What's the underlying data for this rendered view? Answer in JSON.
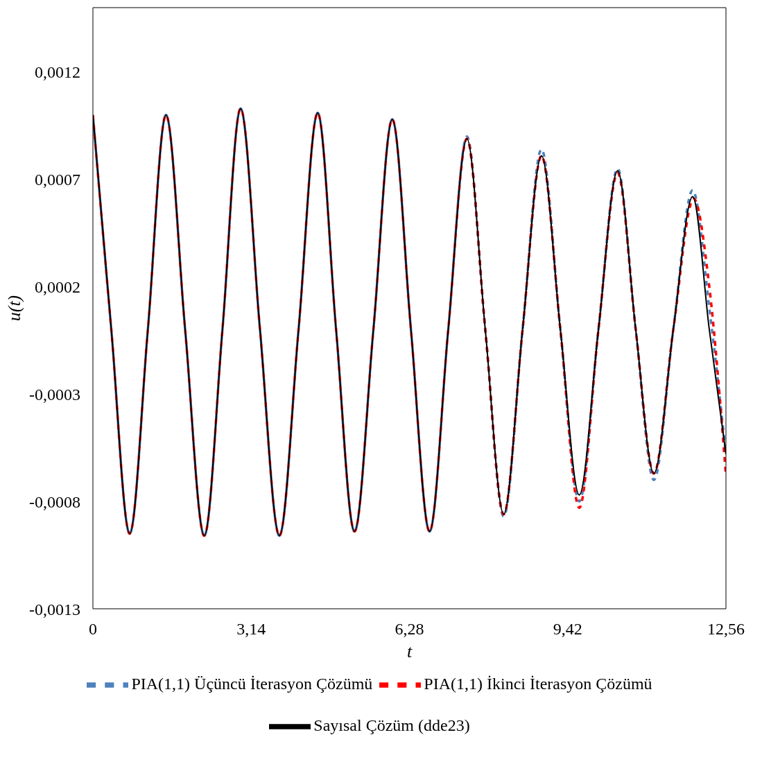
{
  "chart_data": {
    "type": "line",
    "xlabel": "t",
    "ylabel": "u(t)",
    "xlim": [
      0,
      12.56
    ],
    "xticks": [
      0,
      {
        "value": 3.14,
        "label": "3,14"
      },
      {
        "value": 6.28,
        "label": "6,28"
      },
      {
        "value": 9.42,
        "label": "9,42"
      },
      {
        "value": 12.56,
        "label": "12,56"
      }
    ],
    "ylim": [
      -0.0013,
      0.0015
    ],
    "yticks": [
      {
        "value": -0.0013,
        "label": "-0,0013"
      },
      {
        "value": -0.0008,
        "label": "-0,0008"
      },
      {
        "value": -0.0003,
        "label": "-0,0003"
      },
      {
        "value": 0.0002,
        "label": "0,0002"
      },
      {
        "value": 0.0007,
        "label": "0,0007"
      },
      {
        "value": 0.0012,
        "label": "0,0012"
      }
    ],
    "grid": false,
    "legend": "bottom",
    "marker": "none",
    "series": [
      {
        "name": "Sayısal Çözüm (dde23)",
        "color": "#000000",
        "line_style": "solid",
        "x": [
          0,
          0.365,
          0.73,
          1.09,
          1.45,
          1.83,
          2.21,
          2.57,
          2.93,
          3.315,
          3.7,
          4.08,
          4.46,
          4.825,
          5.19,
          5.565,
          5.94,
          6.31,
          6.68,
          7.05,
          7.42,
          7.785,
          8.15,
          8.525,
          8.9,
          9.275,
          9.65,
          10.03,
          10.41,
          10.77,
          11.13,
          11.515,
          11.9,
          12.23,
          12.56
        ],
        "values": [
          0.001,
          0,
          -0.00095,
          0,
          0.001,
          0,
          -0.00096,
          0,
          0.00103,
          0,
          -0.00096,
          0,
          0.00101,
          0,
          -0.00094,
          0,
          0.00098,
          0,
          -0.00094,
          0,
          0.00089,
          0,
          -0.00086,
          0,
          0.00081,
          0,
          -0.00077,
          0,
          0.00074,
          0,
          -0.00067,
          0,
          0.00062,
          0,
          -0.00058
        ]
      },
      {
        "name": "PIA(1,1) İkinci İterasyon Çözümü",
        "color": "#ff0000",
        "line_style": "dashed",
        "x": [
          0,
          0.365,
          0.73,
          1.09,
          1.45,
          1.83,
          2.21,
          2.57,
          2.93,
          3.315,
          3.7,
          4.08,
          4.46,
          4.825,
          5.19,
          5.565,
          5.94,
          6.31,
          6.68,
          7.05,
          7.42,
          7.785,
          8.15,
          8.525,
          8.9,
          9.275,
          9.65,
          10.03,
          10.41,
          10.77,
          11.13,
          11.515,
          11.92,
          12.23,
          12.56
        ],
        "values": [
          0.001,
          0,
          -0.00095,
          0,
          0.001,
          0,
          -0.00096,
          0,
          0.00103,
          0,
          -0.00096,
          0,
          0.00101,
          0,
          -0.00094,
          0,
          0.00098,
          0,
          -0.00094,
          0,
          0.00089,
          0,
          -0.00086,
          0,
          0.00081,
          0,
          -0.00083,
          0,
          0.00073,
          0,
          -0.00067,
          0,
          0.00061,
          0.0002,
          -0.00068
        ]
      },
      {
        "name": "PIA(1,1) Üçüncü İterasyon Çözümü",
        "color": "#4f81bd",
        "line_style": "dashed",
        "x": [
          0,
          0.365,
          0.73,
          1.09,
          1.45,
          1.83,
          2.21,
          2.57,
          2.93,
          3.315,
          3.7,
          4.08,
          4.46,
          4.825,
          5.19,
          5.565,
          5.94,
          6.31,
          6.68,
          7.05,
          7.42,
          7.785,
          8.15,
          8.525,
          8.9,
          9.275,
          9.65,
          10.03,
          10.41,
          10.77,
          11.13,
          11.515,
          11.9,
          12.23,
          12.56
        ],
        "values": [
          0.001,
          0,
          -0.00095,
          0,
          0.001,
          0,
          -0.00096,
          0,
          0.00103,
          0,
          -0.00096,
          0,
          0.00101,
          0,
          -0.00094,
          0,
          0.00098,
          0,
          -0.00094,
          0,
          0.0009,
          0,
          -0.00087,
          0,
          0.00084,
          0,
          -0.0008,
          0,
          0.00075,
          0,
          -0.0007,
          0,
          0.00065,
          0.0001,
          -0.00058
        ]
      }
    ]
  }
}
